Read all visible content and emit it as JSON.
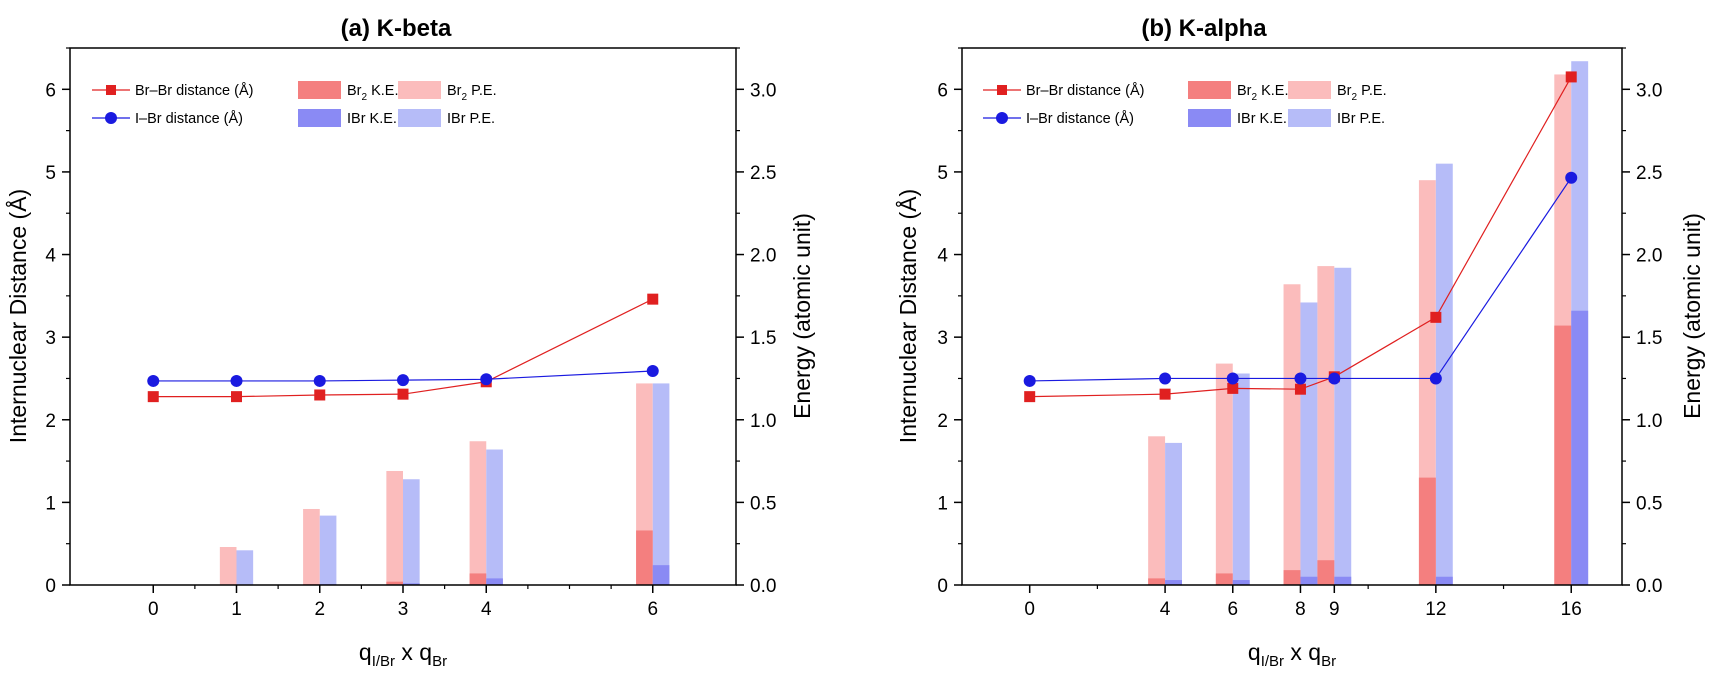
{
  "colors": {
    "br2_line": "#e02020",
    "ibr_line": "#1a1ae0",
    "br2_ke": "#f47f7f",
    "br2_pe": "#fbbcbc",
    "ibr_ke": "#8a8af4",
    "ibr_pe": "#b6bcf8"
  },
  "legend": {
    "br_br": "Br–Br distance (Å)",
    "i_br": "I–Br distance (Å)",
    "br2_ke_base": "Br",
    "br2_ke_sub": "2",
    "br2_ke_suffix": " K.E.",
    "br2_pe_base": "Br",
    "br2_pe_sub": "2",
    "br2_pe_suffix": " P.E.",
    "ibr_ke": "IBr K.E.",
    "ibr_pe": "IBr P.E."
  },
  "chart_data": [
    {
      "type": "bar+line",
      "title": "(a) K-beta",
      "xlabel": {
        "main1": "q",
        "sub1": "I/Br",
        "mid": " x q",
        "sub2": "Br"
      },
      "ylabel_left": "Internuclear Distance (Å)",
      "ylabel_right": "Energy (atomic unit)",
      "xlim": [
        -1,
        7
      ],
      "ylim_left": [
        0,
        6.5
      ],
      "ylim_right": [
        0,
        3.25
      ],
      "x_ticks": [
        0,
        1,
        2,
        3,
        4,
        6
      ],
      "x_tick_labels": [
        "0",
        "1",
        "2",
        "3",
        "4",
        "6"
      ],
      "x_minor_ticks": [
        0.5,
        1.5,
        2.5,
        3.5,
        4.5,
        5,
        5.5
      ],
      "y_left_ticks": [
        0,
        1,
        2,
        3,
        4,
        5,
        6
      ],
      "y_left_tick_labels": [
        "0",
        "1",
        "2",
        "3",
        "4",
        "5",
        "6"
      ],
      "y_right_ticks": [
        0,
        0.5,
        1.0,
        1.5,
        2.0,
        2.5,
        3.0
      ],
      "y_right_tick_labels": [
        "0.0",
        "0.5",
        "1.0",
        "1.5",
        "2.0",
        "2.5",
        "3.0"
      ],
      "bar_width": 0.2,
      "br_br_distance": {
        "x": [
          0,
          1,
          2,
          3,
          4,
          6
        ],
        "y": [
          2.28,
          2.28,
          2.3,
          2.31,
          2.46,
          3.46
        ]
      },
      "i_br_distance": {
        "x": [
          0,
          1,
          2,
          3,
          4,
          6
        ],
        "y": [
          2.47,
          2.47,
          2.47,
          2.48,
          2.49,
          2.59
        ]
      },
      "br2_ke": {
        "x": [
          0,
          1,
          2,
          3,
          4,
          6
        ],
        "y": [
          0,
          0,
          0.005,
          0.02,
          0.07,
          0.33
        ]
      },
      "br2_pe": {
        "x": [
          0,
          1,
          2,
          3,
          4,
          6
        ],
        "y": [
          0,
          0.23,
          0.46,
          0.69,
          0.87,
          1.22
        ]
      },
      "ibr_ke": {
        "x": [
          0,
          1,
          2,
          3,
          4,
          6
        ],
        "y": [
          0,
          0,
          0.005,
          0.01,
          0.04,
          0.12
        ]
      },
      "ibr_pe": {
        "x": [
          0,
          1,
          2,
          3,
          4,
          6
        ],
        "y": [
          0,
          0.21,
          0.42,
          0.64,
          0.82,
          1.22
        ]
      }
    },
    {
      "type": "bar+line",
      "title": "(b) K-alpha",
      "xlabel": {
        "main1": "q",
        "sub1": "I/Br",
        "mid": " x q",
        "sub2": "Br"
      },
      "ylabel_left": "Internuclear Distance (Å)",
      "ylabel_right": "Energy (atomic unit)",
      "xlim": [
        -2,
        17.5
      ],
      "ylim_left": [
        0,
        6.5
      ],
      "ylim_right": [
        0,
        3.25
      ],
      "x_ticks": [
        0,
        4,
        6,
        8,
        9,
        12,
        16
      ],
      "x_tick_labels": [
        "0",
        "4",
        "6",
        "8",
        "9",
        "12",
        "16"
      ],
      "x_minor_ticks": [
        2,
        10,
        14
      ],
      "y_left_ticks": [
        0,
        1,
        2,
        3,
        4,
        5,
        6
      ],
      "y_left_tick_labels": [
        "0",
        "1",
        "2",
        "3",
        "4",
        "5",
        "6"
      ],
      "y_right_ticks": [
        0,
        0.5,
        1.0,
        1.5,
        2.0,
        2.5,
        3.0
      ],
      "y_right_tick_labels": [
        "0.0",
        "0.5",
        "1.0",
        "1.5",
        "2.0",
        "2.5",
        "3.0"
      ],
      "bar_width": 0.5,
      "br_br_distance": {
        "x": [
          0,
          4,
          6,
          8,
          9,
          12,
          16
        ],
        "y": [
          2.28,
          2.31,
          2.38,
          2.37,
          2.52,
          3.24,
          6.15
        ]
      },
      "i_br_distance": {
        "x": [
          0,
          4,
          6,
          8,
          9,
          12,
          16
        ],
        "y": [
          2.47,
          2.5,
          2.5,
          2.5,
          2.5,
          2.5,
          4.93
        ]
      },
      "br2_ke": {
        "x": [
          0,
          4,
          6,
          8,
          9,
          12,
          16
        ],
        "y": [
          0,
          0.04,
          0.07,
          0.09,
          0.15,
          0.65,
          1.57
        ]
      },
      "br2_pe": {
        "x": [
          0,
          4,
          6,
          8,
          9,
          12,
          16
        ],
        "y": [
          0,
          0.9,
          1.34,
          1.82,
          1.93,
          2.45,
          3.09
        ]
      },
      "ibr_ke": {
        "x": [
          0,
          4,
          6,
          8,
          9,
          12,
          16
        ],
        "y": [
          0,
          0.03,
          0.03,
          0.05,
          0.05,
          0.05,
          1.66
        ]
      },
      "ibr_pe": {
        "x": [
          0,
          4,
          6,
          8,
          9,
          12,
          16
        ],
        "y": [
          0,
          0.86,
          1.28,
          1.71,
          1.92,
          2.55,
          3.17
        ]
      }
    }
  ]
}
